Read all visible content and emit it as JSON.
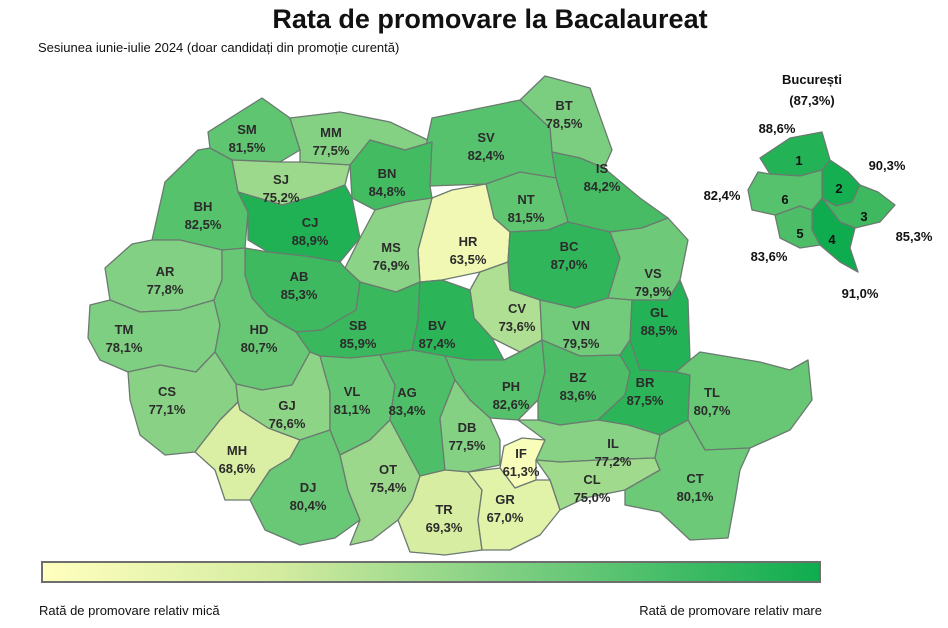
{
  "title": "Rata de promovare la Bacalaureat",
  "subtitle": "Sesiunea iunie-iulie 2024 (doar candidați din promoție curentă)",
  "legend": {
    "low_label": "Rată de promovare relativ mică",
    "high_label": "Rată de promovare relativ mare",
    "low_color": "#ffffbe",
    "high_color": "#0fac4f"
  },
  "counties": [
    {
      "code": "SM",
      "value": "81,5%",
      "rate": 81.5
    },
    {
      "code": "MM",
      "value": "77,5%",
      "rate": 77.5
    },
    {
      "code": "BT",
      "value": "78,5%",
      "rate": 78.5
    },
    {
      "code": "SV",
      "value": "82,4%",
      "rate": 82.4
    },
    {
      "code": "BN",
      "value": "84,8%",
      "rate": 84.8
    },
    {
      "code": "SJ",
      "value": "75,2%",
      "rate": 75.2
    },
    {
      "code": "BH",
      "value": "82,5%",
      "rate": 82.5
    },
    {
      "code": "CJ",
      "value": "88,9%",
      "rate": 88.9
    },
    {
      "code": "IS",
      "value": "84,2%",
      "rate": 84.2
    },
    {
      "code": "NT",
      "value": "81,5%",
      "rate": 81.5
    },
    {
      "code": "HR",
      "value": "63,5%",
      "rate": 63.5
    },
    {
      "code": "MS",
      "value": "76,9%",
      "rate": 76.9
    },
    {
      "code": "AR",
      "value": "77,8%",
      "rate": 77.8
    },
    {
      "code": "AB",
      "value": "85,3%",
      "rate": 85.3
    },
    {
      "code": "BC",
      "value": "87,0%",
      "rate": 87.0
    },
    {
      "code": "VS",
      "value": "79,9%",
      "rate": 79.9
    },
    {
      "code": "CV",
      "value": "73,6%",
      "rate": 73.6
    },
    {
      "code": "TM",
      "value": "78,1%",
      "rate": 78.1
    },
    {
      "code": "HD",
      "value": "80,7%",
      "rate": 80.7
    },
    {
      "code": "SB",
      "value": "85,9%",
      "rate": 85.9
    },
    {
      "code": "BV",
      "value": "87,4%",
      "rate": 87.4
    },
    {
      "code": "VN",
      "value": "79,5%",
      "rate": 79.5
    },
    {
      "code": "GL",
      "value": "88,5%",
      "rate": 88.5
    },
    {
      "code": "CS",
      "value": "77,1%",
      "rate": 77.1
    },
    {
      "code": "GJ",
      "value": "76,6%",
      "rate": 76.6
    },
    {
      "code": "VL",
      "value": "81,1%",
      "rate": 81.1
    },
    {
      "code": "AG",
      "value": "83,4%",
      "rate": 83.4
    },
    {
      "code": "PH",
      "value": "82,6%",
      "rate": 82.6
    },
    {
      "code": "BZ",
      "value": "83,6%",
      "rate": 83.6
    },
    {
      "code": "BR",
      "value": "87,5%",
      "rate": 87.5
    },
    {
      "code": "TL",
      "value": "80,7%",
      "rate": 80.7
    },
    {
      "code": "DB",
      "value": "77,5%",
      "rate": 77.5
    },
    {
      "code": "IL",
      "value": "77,2%",
      "rate": 77.2
    },
    {
      "code": "MH",
      "value": "68,6%",
      "rate": 68.6
    },
    {
      "code": "IF",
      "value": "61,3%",
      "rate": 61.3
    },
    {
      "code": "DJ",
      "value": "80,4%",
      "rate": 80.4
    },
    {
      "code": "OT",
      "value": "75,4%",
      "rate": 75.4
    },
    {
      "code": "CL",
      "value": "75,0%",
      "rate": 75.0
    },
    {
      "code": "CT",
      "value": "80,1%",
      "rate": 80.1
    },
    {
      "code": "TR",
      "value": "69,3%",
      "rate": 69.3
    },
    {
      "code": "GR",
      "value": "67,0%",
      "rate": 67.0
    }
  ],
  "bucharest": {
    "name": "București",
    "value": "(87,3%)",
    "sectors": [
      {
        "num": "1",
        "value": "88,6%",
        "rate": 88.6
      },
      {
        "num": "2",
        "value": "90,3%",
        "rate": 90.3
      },
      {
        "num": "3",
        "value": "85,3%",
        "rate": 85.3
      },
      {
        "num": "4",
        "value": "91,0%",
        "rate": 91.0
      },
      {
        "num": "5",
        "value": "83,6%",
        "rate": 83.6
      },
      {
        "num": "6",
        "value": "82,4%",
        "rate": 82.4
      }
    ]
  }
}
